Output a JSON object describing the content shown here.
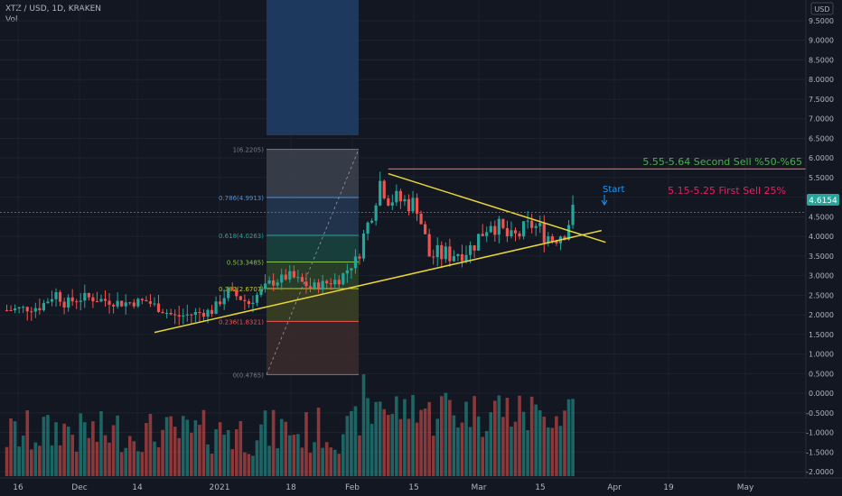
{
  "header": {
    "symbol": "XTZ / USD, 1D, KRAKEN",
    "volume_label": "Vol"
  },
  "price_axis": {
    "currency": "USD",
    "ticks": [
      "9.5000",
      "9.0000",
      "8.5000",
      "8.0000",
      "7.5000",
      "7.0000",
      "6.5000",
      "6.0000",
      "5.5000",
      "5.0000",
      "4.5000",
      "4.0000",
      "3.5000",
      "3.0000",
      "2.5000",
      "2.0000",
      "1.5000",
      "1.0000",
      "0.5000",
      "0.0000",
      "-0.5000",
      "-1.0000",
      "-1.5000",
      "-2.0000"
    ],
    "last_price": "4.6154",
    "last_price_color": "#26a69a"
  },
  "time_axis": {
    "labels": [
      "16",
      "Dec",
      "14",
      "2021",
      "18",
      "Feb",
      "15",
      "Mar",
      "15",
      "Apr",
      "19",
      "May"
    ]
  },
  "fib_levels": [
    {
      "label": "1(6.2205)",
      "value": 6.2205,
      "color": "#787b86",
      "fill": "#3a3f4b"
    },
    {
      "label": "0.786(4.9913)",
      "value": 4.9913,
      "color": "#4f8fd6",
      "fill": "#22364f"
    },
    {
      "label": "0.618(4.0263)",
      "value": 4.0263,
      "color": "#26a69a",
      "fill": "#19423f"
    },
    {
      "label": "0.5(3.3485)",
      "value": 3.3485,
      "color": "#8bc34a",
      "fill": "#2a4128"
    },
    {
      "label": "0.382(2.6707)",
      "value": 2.6707,
      "color": "#c0ca33",
      "fill": "#3a3f22"
    },
    {
      "label": "0.236(1.8321)",
      "value": 1.8321,
      "color": "#ef5350",
      "fill": "#3a2a2c"
    },
    {
      "label": "0(0.4765)",
      "value": 0.4765,
      "color": "#787b86",
      "fill": "#4a2426"
    }
  ],
  "annotations": {
    "second_sell": {
      "text": "5.55-5.64 Second Sell %50-%65",
      "color": "#4caf50"
    },
    "first_sell": {
      "text": "5.15-5.25 First Sell 25%",
      "color": "#e91e63"
    },
    "start": {
      "text": "Start",
      "color": "#2196f3"
    }
  },
  "colors": {
    "up": "#26a69a",
    "down": "#ef5350",
    "trendline": "#e8d535",
    "resistance": "#ef5350"
  },
  "chart_data": {
    "type": "candlestick",
    "title": "XTZ / USD, 1D, KRAKEN",
    "y_unit": "USD",
    "ylim": [
      -2.2,
      9.8
    ],
    "x_range": [
      "2020-11-11",
      "2021-05-10"
    ],
    "price_series_approx": [
      {
        "date": "2020-11-12",
        "close": 2.12
      },
      {
        "date": "2020-11-20",
        "close": 2.2
      },
      {
        "date": "2020-11-24",
        "close": 2.55
      },
      {
        "date": "2020-11-26",
        "close": 2.3
      },
      {
        "date": "2020-12-01",
        "close": 2.45
      },
      {
        "date": "2020-12-10",
        "close": 2.3
      },
      {
        "date": "2020-12-16",
        "close": 2.35
      },
      {
        "date": "2020-12-23",
        "close": 1.95
      },
      {
        "date": "2021-01-01",
        "close": 2.1
      },
      {
        "date": "2021-01-05",
        "close": 2.6
      },
      {
        "date": "2021-01-10",
        "close": 2.3
      },
      {
        "date": "2021-01-15",
        "close": 2.8
      },
      {
        "date": "2021-01-20",
        "close": 3.0
      },
      {
        "date": "2021-01-25",
        "close": 2.7
      },
      {
        "date": "2021-02-01",
        "close": 2.9
      },
      {
        "date": "2021-02-05",
        "close": 3.4
      },
      {
        "date": "2021-02-08",
        "close": 4.3
      },
      {
        "date": "2021-02-11",
        "close": 5.4
      },
      {
        "date": "2021-02-13",
        "close": 5.0
      },
      {
        "date": "2021-02-20",
        "close": 4.8
      },
      {
        "date": "2021-02-23",
        "close": 3.5
      },
      {
        "date": "2021-02-28",
        "close": 3.55
      },
      {
        "date": "2021-03-05",
        "close": 3.7
      },
      {
        "date": "2021-03-10",
        "close": 4.4
      },
      {
        "date": "2021-03-15",
        "close": 3.9
      },
      {
        "date": "2021-03-20",
        "close": 4.3
      },
      {
        "date": "2021-03-25",
        "close": 3.95
      },
      {
        "date": "2021-03-28",
        "close": 4.15
      },
      {
        "date": "2021-03-30",
        "close": 4.62
      }
    ],
    "drawings": {
      "descending_trendline": [
        {
          "date": "2021-02-13",
          "price": 5.6
        },
        {
          "date": "2021-04-07",
          "price": 3.85
        }
      ],
      "ascending_trendline": [
        {
          "date": "2020-12-18",
          "price": 1.55
        },
        {
          "date": "2021-04-06",
          "price": 4.15
        }
      ],
      "resistance_line": {
        "price": 5.72,
        "from": "2021-02-13",
        "to": "2021-05-10"
      },
      "fib_retracement": {
        "from": {
          "date": "2021-01-12",
          "price": 0.4765
        },
        "to": {
          "date": "2021-02-01",
          "price": 6.2205
        }
      }
    },
    "volume_series": "approximate volume bars (teal = up day, red = down day)"
  }
}
